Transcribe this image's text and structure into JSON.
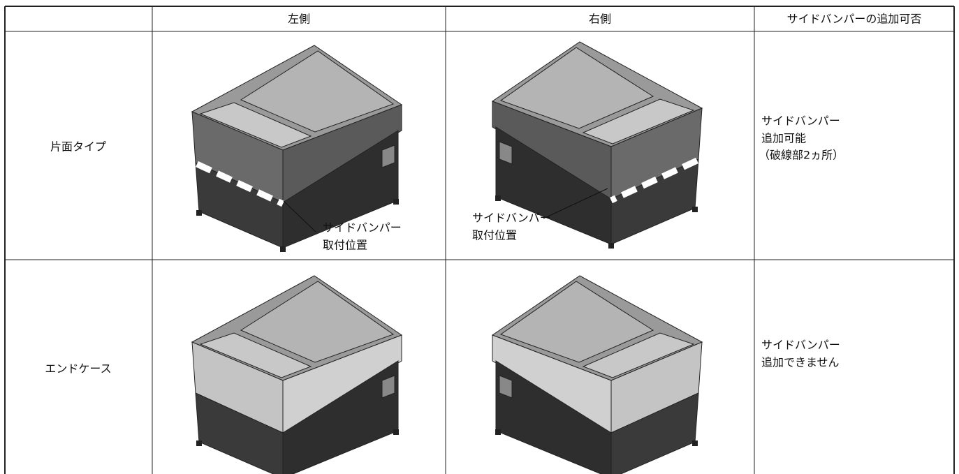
{
  "table": {
    "header": [
      "左側",
      "右側",
      "サイドバンパーの追加可否"
    ],
    "rows": [
      {
        "label": "片面タイプ",
        "left_callout": [
          "サイドバンパー",
          "取付位置"
        ],
        "right_callout": [
          "サイドバンパー",
          "取付位置"
        ],
        "note": [
          "サイドバンパー",
          "追加可能",
          "（破線部2ヵ所）"
        ]
      },
      {
        "label": "エンドケース",
        "note": [
          "サイドバンパー",
          "追加できません"
        ]
      }
    ]
  }
}
